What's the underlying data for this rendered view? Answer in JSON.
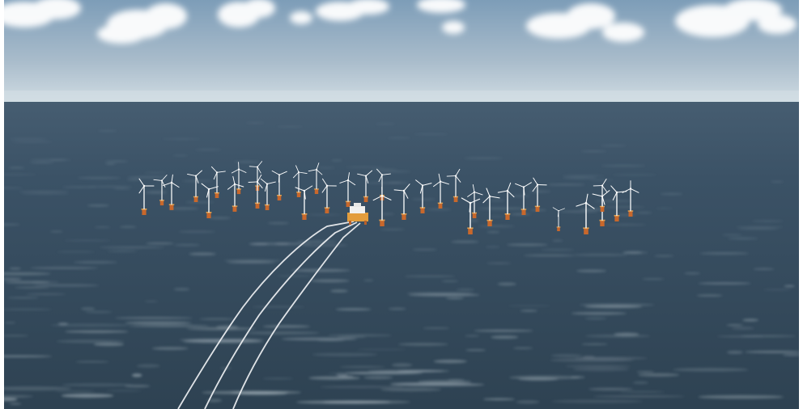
{
  "scene": {
    "subject": "offshore-wind-farm",
    "turbine_count": 36,
    "substation_count": 1,
    "export_cable_count": 3,
    "colors": {
      "sky_top": "#7f9fba",
      "sky_horizon": "#c9d6de",
      "sea_far": "#3e556a",
      "sea_near": "#2f4354",
      "turbine_tower": "#f2f4f5",
      "foundation": "#c8682c",
      "substation": "#e09a3a",
      "cable": "#f4f6f8",
      "frame": "#ffffff"
    },
    "icons": [
      "cloud-icon",
      "wind-turbine-icon",
      "offshore-substation-icon"
    ]
  }
}
